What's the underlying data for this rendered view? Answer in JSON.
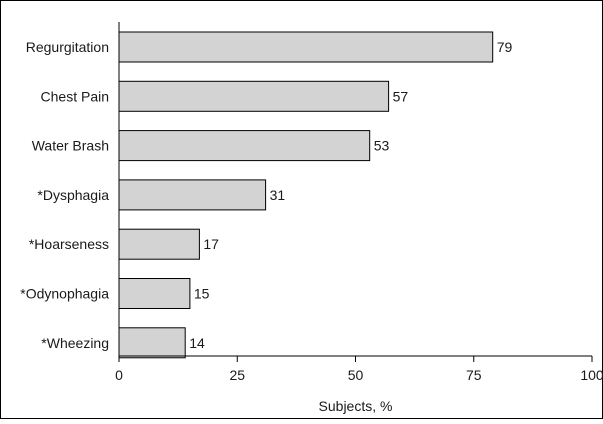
{
  "chart_data": {
    "type": "bar",
    "orientation": "horizontal",
    "categories": [
      "Regurgitation",
      "Chest Pain",
      "Water Brash",
      "*Dysphagia",
      "*Hoarseness",
      "*Odynophagia",
      "*Wheezing"
    ],
    "values": [
      79,
      57,
      53,
      31,
      17,
      15,
      14
    ],
    "value_labels": [
      "79",
      "57",
      "53",
      "31",
      "17",
      "15",
      "14"
    ],
    "xlabel": "Subjects, %",
    "ylabel": "",
    "xlim": [
      0,
      100
    ],
    "xticks": [
      0,
      25,
      50,
      75,
      100
    ],
    "xtick_labels": [
      "0",
      "25",
      "50",
      "75",
      "100"
    ],
    "grid": false,
    "bar_color": "#d3d3d3",
    "bar_edge_color": "#000000"
  }
}
